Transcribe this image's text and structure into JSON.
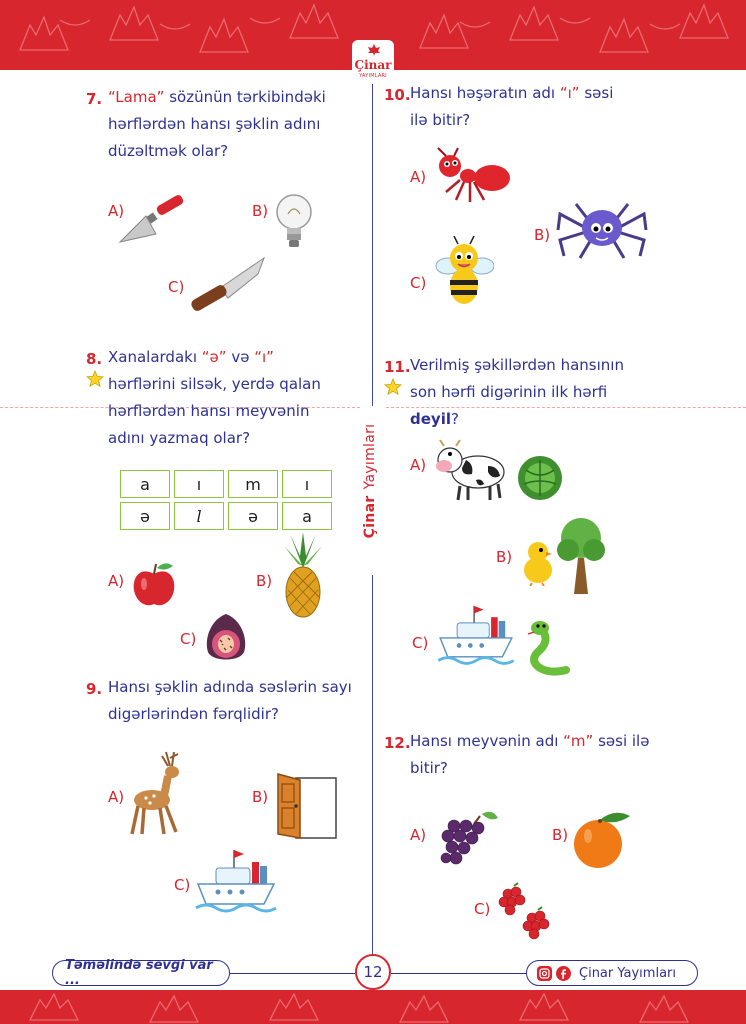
{
  "brand": {
    "logo_name": "Çinar",
    "logo_sub": "YAYIMLARI",
    "vertical_label_bold": "Çinar",
    "vertical_label_rest": "Yayımları"
  },
  "colors": {
    "band": "#d7262d",
    "text": "#2e3192",
    "accent": "#d7262d",
    "grid_border": "#8cc63e"
  },
  "questions": {
    "q7": {
      "num": "7.",
      "line1_q": "“Lama”",
      "line1_rest": " sözünün tərkibindəki",
      "line2": "hərflərdən hansı şəklin adını",
      "line3": "düzəltmək olar?",
      "options": {
        "a": "A)",
        "b": "B)",
        "c": "C)"
      },
      "images": {
        "a": "trowel",
        "b": "light-bulb",
        "c": "knife"
      }
    },
    "q8": {
      "num": "8.",
      "line1_start": "Xanalardakı ",
      "quote1": "“ə”",
      "mid": " və ",
      "quote2": "“ı”",
      "line2": "hərflərini silsək, yerdə qalan",
      "line3": "hərflərdən hansı meyvənin",
      "line4": "adını yazmaq olar?",
      "grid": [
        [
          "a",
          "ı",
          "m",
          "ı"
        ],
        [
          "ə",
          "l",
          "ə",
          "a"
        ]
      ],
      "options": {
        "a": "A)",
        "b": "B)",
        "c": "C)"
      },
      "images": {
        "a": "apple",
        "b": "pineapple",
        "c": "fig"
      }
    },
    "q9": {
      "num": "9.",
      "line1": "Hansı şəklin adında səslərin sayı",
      "line2": "digərlərindən fərqlidir?",
      "options": {
        "a": "A)",
        "b": "B)",
        "c": "C)"
      },
      "images": {
        "a": "deer",
        "b": "door",
        "c": "ship"
      }
    },
    "q10": {
      "num": "10.",
      "line1_start": "Hansı həşəratın adı ",
      "quote": "“ı”",
      "line1_end": " səsi",
      "line2": "ilə bitir?",
      "options": {
        "a": "A)",
        "b": "B)",
        "c": "C)"
      },
      "images": {
        "a": "ant",
        "b": "spider",
        "c": "bee"
      }
    },
    "q11": {
      "num": "11.",
      "line1": "Verilmiş şəkillərdən hansının",
      "line2": "son hərfi digərinin ilk hərfi",
      "line3_bold": "deyil",
      "line3_end": "?",
      "options": {
        "a": "A)",
        "b": "B)",
        "c": "C)"
      },
      "images": {
        "a": "cow-and-cabbage",
        "b": "chick-and-tree",
        "c": "ship-and-snake"
      }
    },
    "q12": {
      "num": "12.",
      "line1_start": "Hansı meyvənin adı ",
      "quote": "“m”",
      "line1_end": " səsi ilə",
      "line2": "bitir?",
      "options": {
        "a": "A)",
        "b": "B)",
        "c": "C)"
      },
      "images": {
        "a": "grapes",
        "b": "orange",
        "c": "raspberry"
      }
    }
  },
  "footer": {
    "slogan": "Təməlində sevgi var ...",
    "page_number": "12",
    "brand": "Çinar Yayımları",
    "icons": [
      "instagram-icon",
      "facebook-icon"
    ]
  }
}
